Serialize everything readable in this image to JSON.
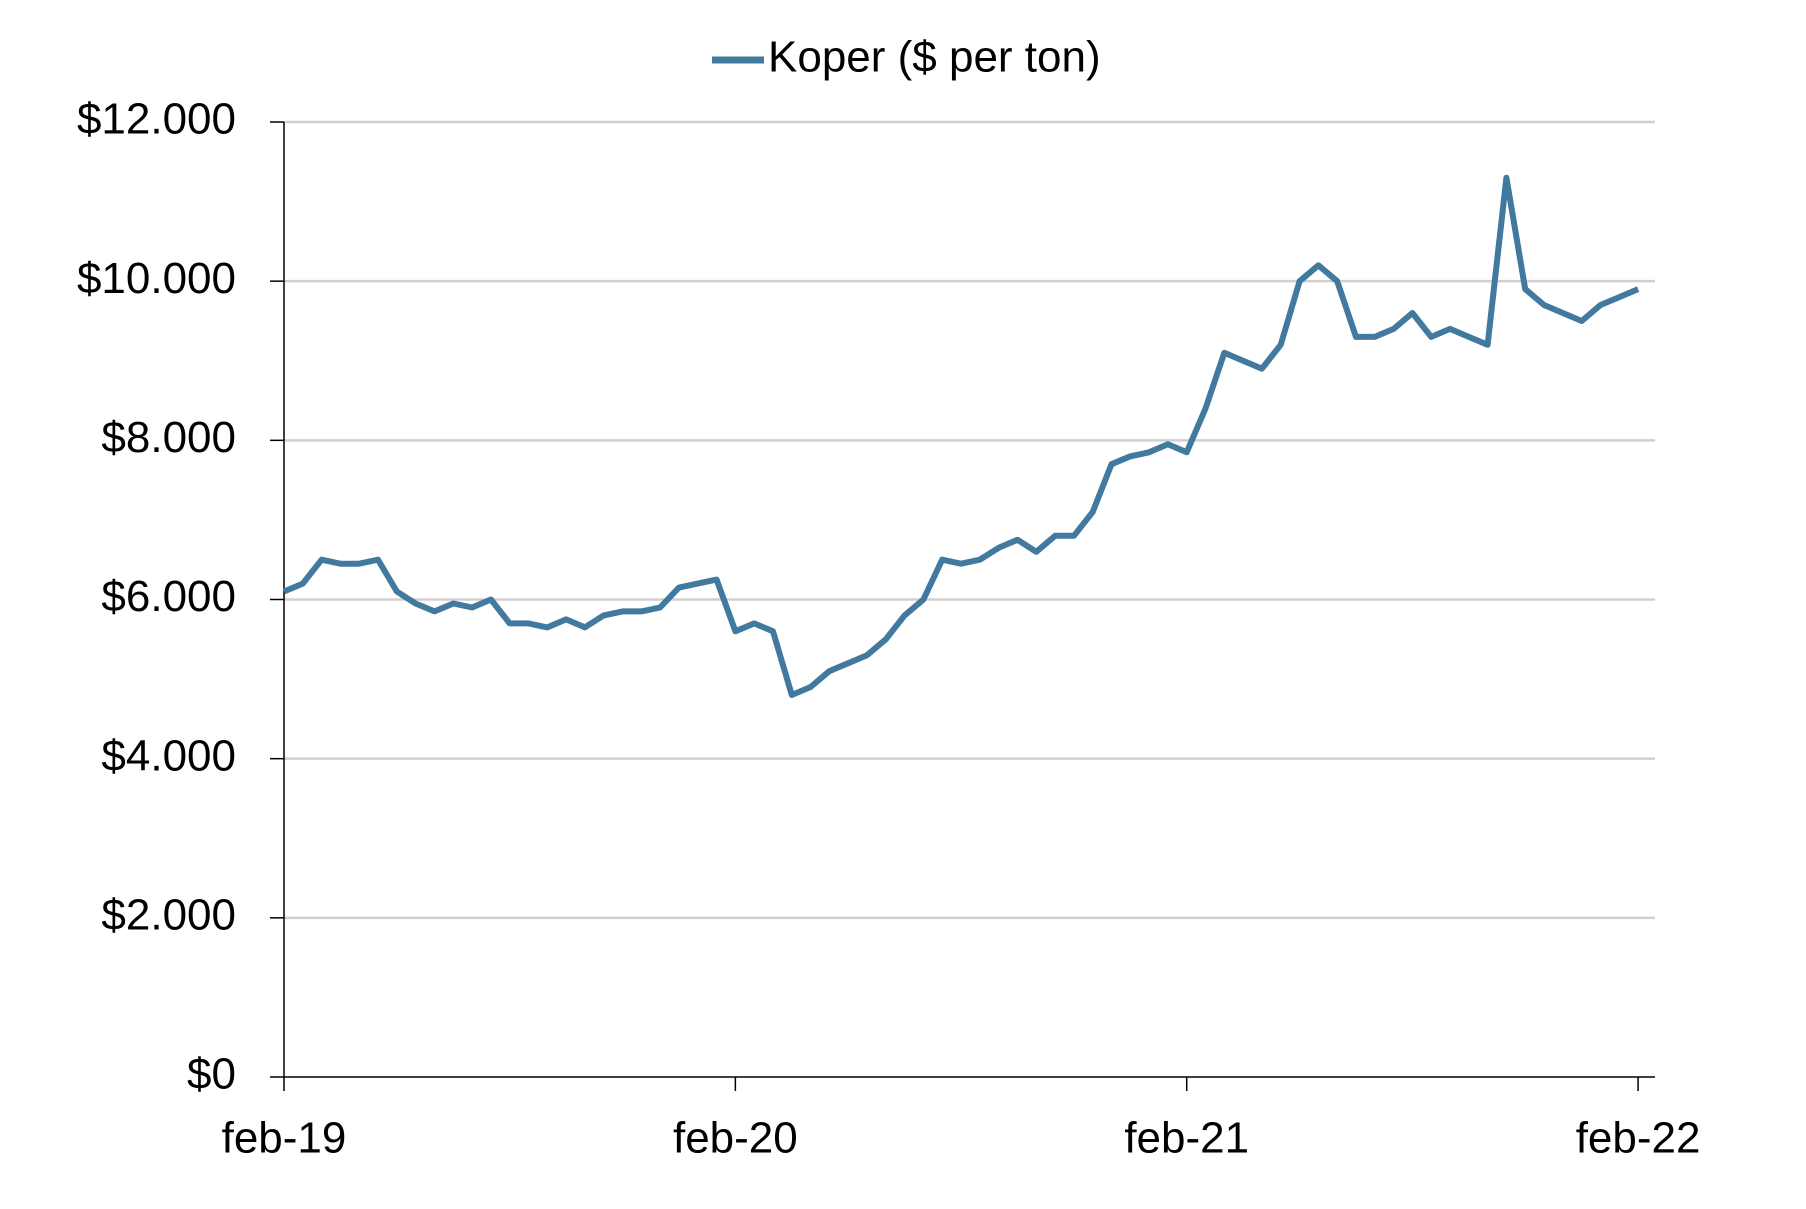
{
  "chart_data": {
    "type": "line",
    "categories": [
      "feb-19",
      null,
      null,
      null,
      null,
      null,
      null,
      null,
      null,
      null,
      null,
      null,
      null,
      null,
      null,
      null,
      null,
      null,
      null,
      null,
      null,
      null,
      null,
      null,
      "feb-20",
      null,
      null,
      null,
      null,
      null,
      null,
      null,
      null,
      null,
      null,
      null,
      null,
      null,
      null,
      null,
      null,
      null,
      null,
      null,
      null,
      null,
      null,
      null,
      "feb-21",
      null,
      null,
      null,
      null,
      null,
      null,
      null,
      null,
      null,
      null,
      null,
      null,
      null,
      null,
      null,
      null,
      null,
      null,
      null,
      null,
      null,
      null,
      null,
      "feb-22"
    ],
    "series": [
      {
        "name": "Koper ($ per ton)",
        "color": "#41799f",
        "values": [
          6100,
          6200,
          6500,
          6450,
          6450,
          6500,
          6100,
          5950,
          5850,
          5950,
          5900,
          6000,
          5700,
          5700,
          5650,
          5750,
          5650,
          5800,
          5850,
          5850,
          5900,
          6150,
          6200,
          6250,
          5600,
          5700,
          5600,
          4800,
          4900,
          5100,
          5200,
          5300,
          5500,
          5800,
          6000,
          6500,
          6450,
          6500,
          6650,
          6750,
          6600,
          6800,
          6800,
          7100,
          7700,
          7800,
          7850,
          7950,
          7850,
          8400,
          9100,
          9000,
          8900,
          9200,
          10000,
          10200,
          10000,
          9300,
          9300,
          9400,
          9600,
          9300,
          9400,
          9300,
          9200,
          11300,
          9900,
          9700,
          9600,
          9500,
          9700,
          9800,
          9900
        ]
      }
    ],
    "ylim": [
      0,
      12000
    ],
    "yticks": [
      {
        "value": 0,
        "label": "$0"
      },
      {
        "value": 2000,
        "label": "$2.000"
      },
      {
        "value": 4000,
        "label": "$4.000"
      },
      {
        "value": 6000,
        "label": "$6.000"
      },
      {
        "value": 8000,
        "label": "$8.000"
      },
      {
        "value": 10000,
        "label": "$10.000"
      },
      {
        "value": 12000,
        "label": "$12.000"
      }
    ],
    "grid": true,
    "legend": "top"
  }
}
